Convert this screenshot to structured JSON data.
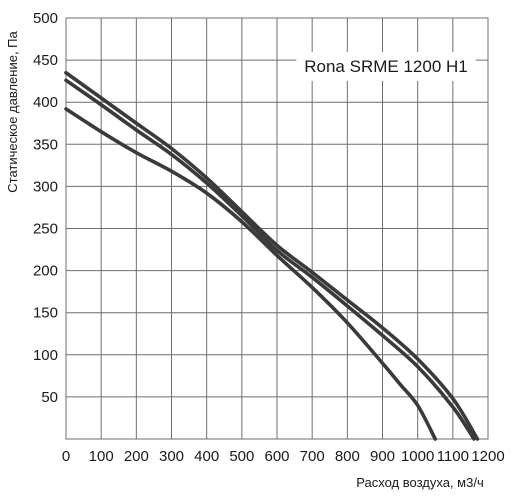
{
  "chart_data": {
    "type": "line",
    "title": "",
    "annotation": "Rona SRME 1200 H1",
    "xlabel": "Расход воздуха, м3/ч",
    "ylabel": "Статическое давление, Па",
    "xlim": [
      0,
      1200
    ],
    "ylim": [
      0,
      500
    ],
    "x_ticks": [
      0,
      100,
      200,
      300,
      400,
      500,
      600,
      700,
      800,
      900,
      1000,
      1100,
      1200
    ],
    "y_ticks": [
      50,
      100,
      150,
      200,
      250,
      300,
      350,
      400,
      450,
      500
    ],
    "grid": true,
    "line_color": "#3a3a3a",
    "series": [
      {
        "x": [
          0,
          100,
          200,
          300,
          400,
          500,
          600,
          700,
          800,
          900,
          1000,
          1100,
          1170
        ],
        "y": [
          435,
          405,
          375,
          345,
          310,
          270,
          230,
          198,
          165,
          132,
          95,
          48,
          0
        ]
      },
      {
        "x": [
          0,
          100,
          200,
          300,
          400,
          500,
          600,
          700,
          800,
          900,
          1000,
          1100,
          1160
        ],
        "y": [
          426,
          397,
          367,
          338,
          304,
          265,
          224,
          192,
          158,
          123,
          86,
          38,
          0
        ]
      },
      {
        "x": [
          0,
          100,
          200,
          300,
          400,
          500,
          600,
          700,
          800,
          900,
          950,
          1000,
          1050
        ],
        "y": [
          392,
          365,
          340,
          318,
          292,
          258,
          218,
          180,
          138,
          90,
          65,
          40,
          0
        ]
      }
    ]
  }
}
